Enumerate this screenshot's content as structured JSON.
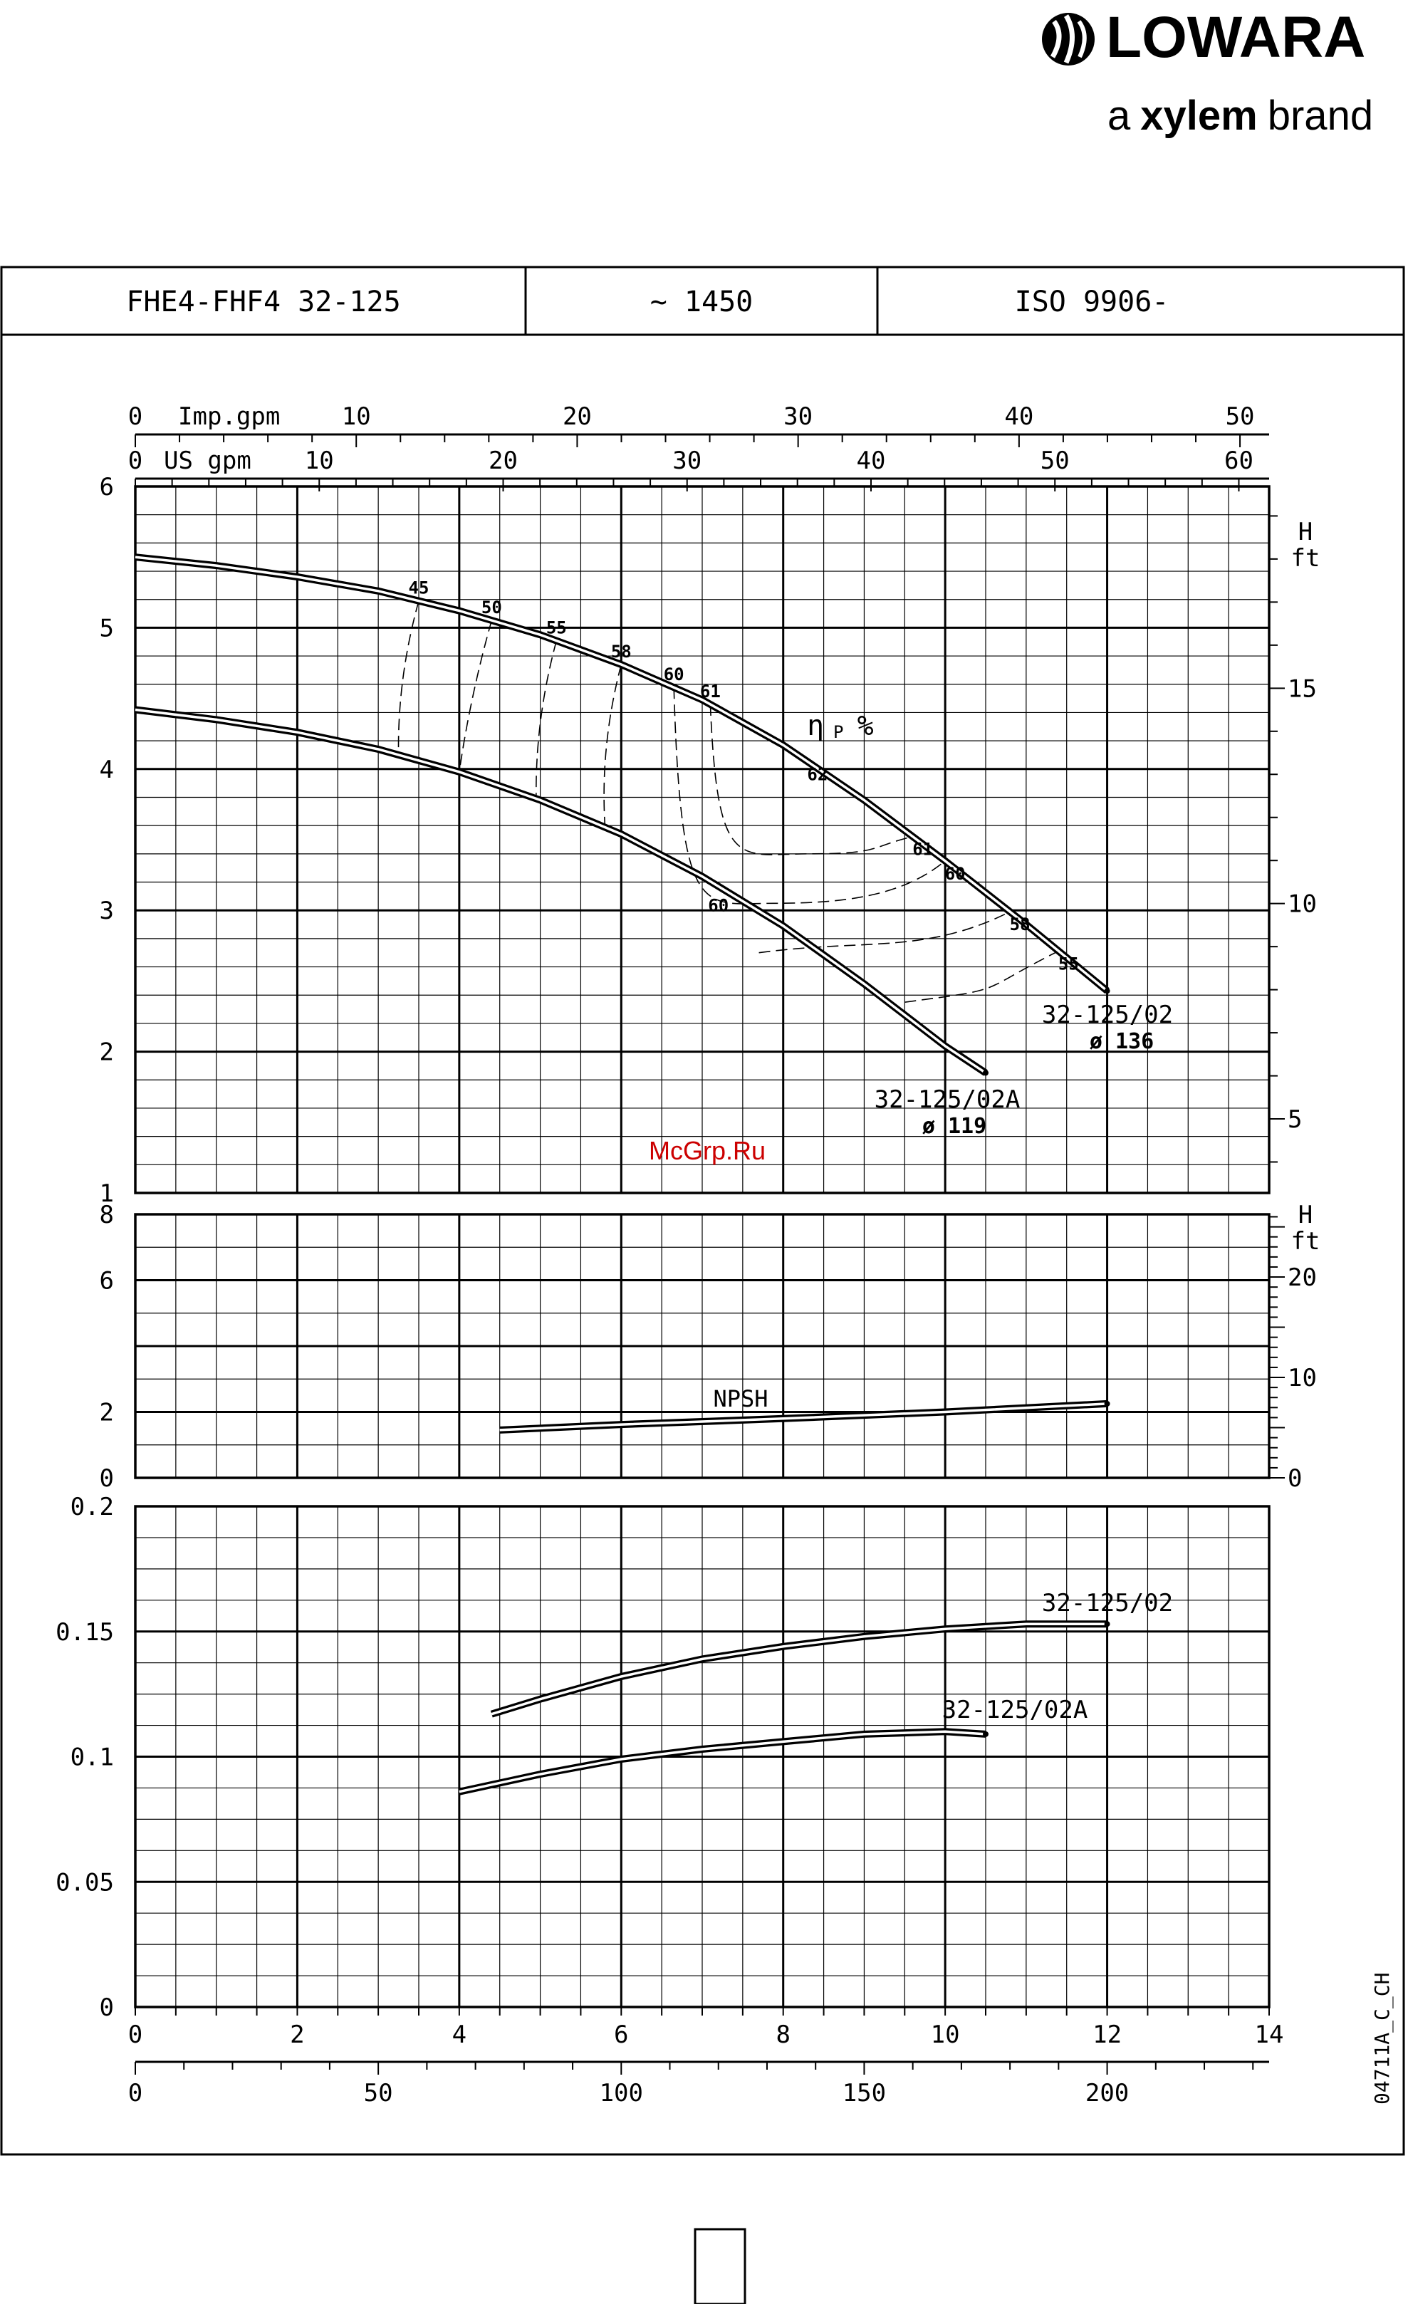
{
  "brand": {
    "logo_text": "LOWARA",
    "tagline_prefix": "a",
    "tagline_bold": "xylem",
    "tagline_suffix": "brand"
  },
  "header": {
    "model": "FHE4-FHF4 32-125",
    "speed": "~ 1450",
    "standard": "ISO 9906-"
  },
  "watermark": "McGrp.Ru",
  "doc_code": "04711A_C_CH",
  "colors": {
    "ink": "#000000",
    "watermark": "#cc0000",
    "background": "#ffffff"
  },
  "chart_data": [
    {
      "type": "line",
      "title": "",
      "x_axes": {
        "imp_gpm": {
          "label": "Imp.gpm",
          "ticks": [
            0,
            10,
            20,
            30,
            40,
            50
          ]
        },
        "us_gpm": {
          "label": "US gpm",
          "ticks": [
            0,
            10,
            20,
            30,
            40,
            50,
            60
          ]
        },
        "m3h": {
          "label": "",
          "ticks": [
            0,
            2,
            4,
            6,
            8,
            10,
            12,
            14
          ],
          "lim": [
            0,
            14
          ]
        },
        "lmin": {
          "label": "",
          "ticks": [
            0,
            50,
            100,
            150,
            200
          ]
        }
      },
      "y_left": {
        "label": "",
        "ticks": [
          1,
          2,
          3,
          4,
          5,
          6
        ],
        "lim": [
          1,
          6
        ]
      },
      "y_right": {
        "label": "H",
        "unit": "ft",
        "ticks": [
          5,
          10,
          15
        ]
      },
      "grid": true,
      "series": [
        {
          "name": "32-125/02",
          "label_line2": "ø 136",
          "x": [
            0,
            1,
            2,
            3,
            4,
            5,
            6,
            7,
            8,
            9,
            10,
            11,
            12
          ],
          "y": [
            5.5,
            5.44,
            5.36,
            5.26,
            5.12,
            4.95,
            4.74,
            4.49,
            4.17,
            3.78,
            3.35,
            2.9,
            2.43
          ]
        },
        {
          "name": "32-125/02A",
          "label_line2": "ø 119",
          "x": [
            0,
            1,
            2,
            3,
            4,
            5,
            6,
            7,
            8,
            9,
            10,
            10.5
          ],
          "y": [
            4.42,
            4.35,
            4.26,
            4.14,
            3.98,
            3.78,
            3.54,
            3.24,
            2.89,
            2.48,
            2.04,
            1.85
          ]
        }
      ],
      "efficiency": {
        "label": "η",
        "label_sub": "P",
        "label_unit": "%",
        "values_on_02": [
          {
            "eta": 45,
            "x": 3.5
          },
          {
            "eta": 50,
            "x": 4.4
          },
          {
            "eta": 55,
            "x": 5.2
          },
          {
            "eta": 58,
            "x": 6.0
          },
          {
            "eta": 60,
            "x": 6.65
          },
          {
            "eta": 61,
            "x": 7.1
          },
          {
            "eta": 62,
            "x": 8.3
          },
          {
            "eta": 61,
            "x": 9.6
          },
          {
            "eta": 60,
            "x": 10.0
          },
          {
            "eta": 58,
            "x": 10.8
          },
          {
            "eta": 55,
            "x": 11.4
          }
        ],
        "values_on_02A": [
          {
            "eta": 60,
            "x": 7.2
          }
        ]
      }
    },
    {
      "type": "line",
      "title": "",
      "x_axis": {
        "lim": [
          0,
          14
        ]
      },
      "y_left": {
        "label": "",
        "ticks": [
          0,
          2,
          6,
          8
        ],
        "lim": [
          0,
          8
        ]
      },
      "y_right": {
        "label": "H",
        "unit": "ft",
        "ticks": [
          0,
          10,
          20
        ]
      },
      "grid": true,
      "series": [
        {
          "name": "NPSH",
          "x": [
            4.5,
            6,
            8,
            10,
            12
          ],
          "y": [
            1.45,
            1.62,
            1.8,
            2.0,
            2.25
          ]
        }
      ]
    },
    {
      "type": "line",
      "title": "",
      "x_axis": {
        "lim": [
          0,
          14
        ]
      },
      "y_left": {
        "label": "",
        "ticks": [
          "0",
          "0.05",
          "0.1",
          "0.15",
          "0.2"
        ],
        "lim": [
          0,
          0.2
        ]
      },
      "grid": true,
      "series": [
        {
          "name": "32-125/02",
          "x": [
            4.4,
            5,
            6,
            7,
            8,
            9,
            10,
            11,
            12
          ],
          "y": [
            0.117,
            0.123,
            0.132,
            0.139,
            0.144,
            0.148,
            0.151,
            0.153,
            0.153
          ]
        },
        {
          "name": "32-125/02A",
          "x": [
            4.0,
            5,
            6,
            7,
            8,
            9,
            10,
            10.5
          ],
          "y": [
            0.086,
            0.093,
            0.099,
            0.103,
            0.106,
            0.109,
            0.11,
            0.109
          ]
        }
      ]
    }
  ]
}
